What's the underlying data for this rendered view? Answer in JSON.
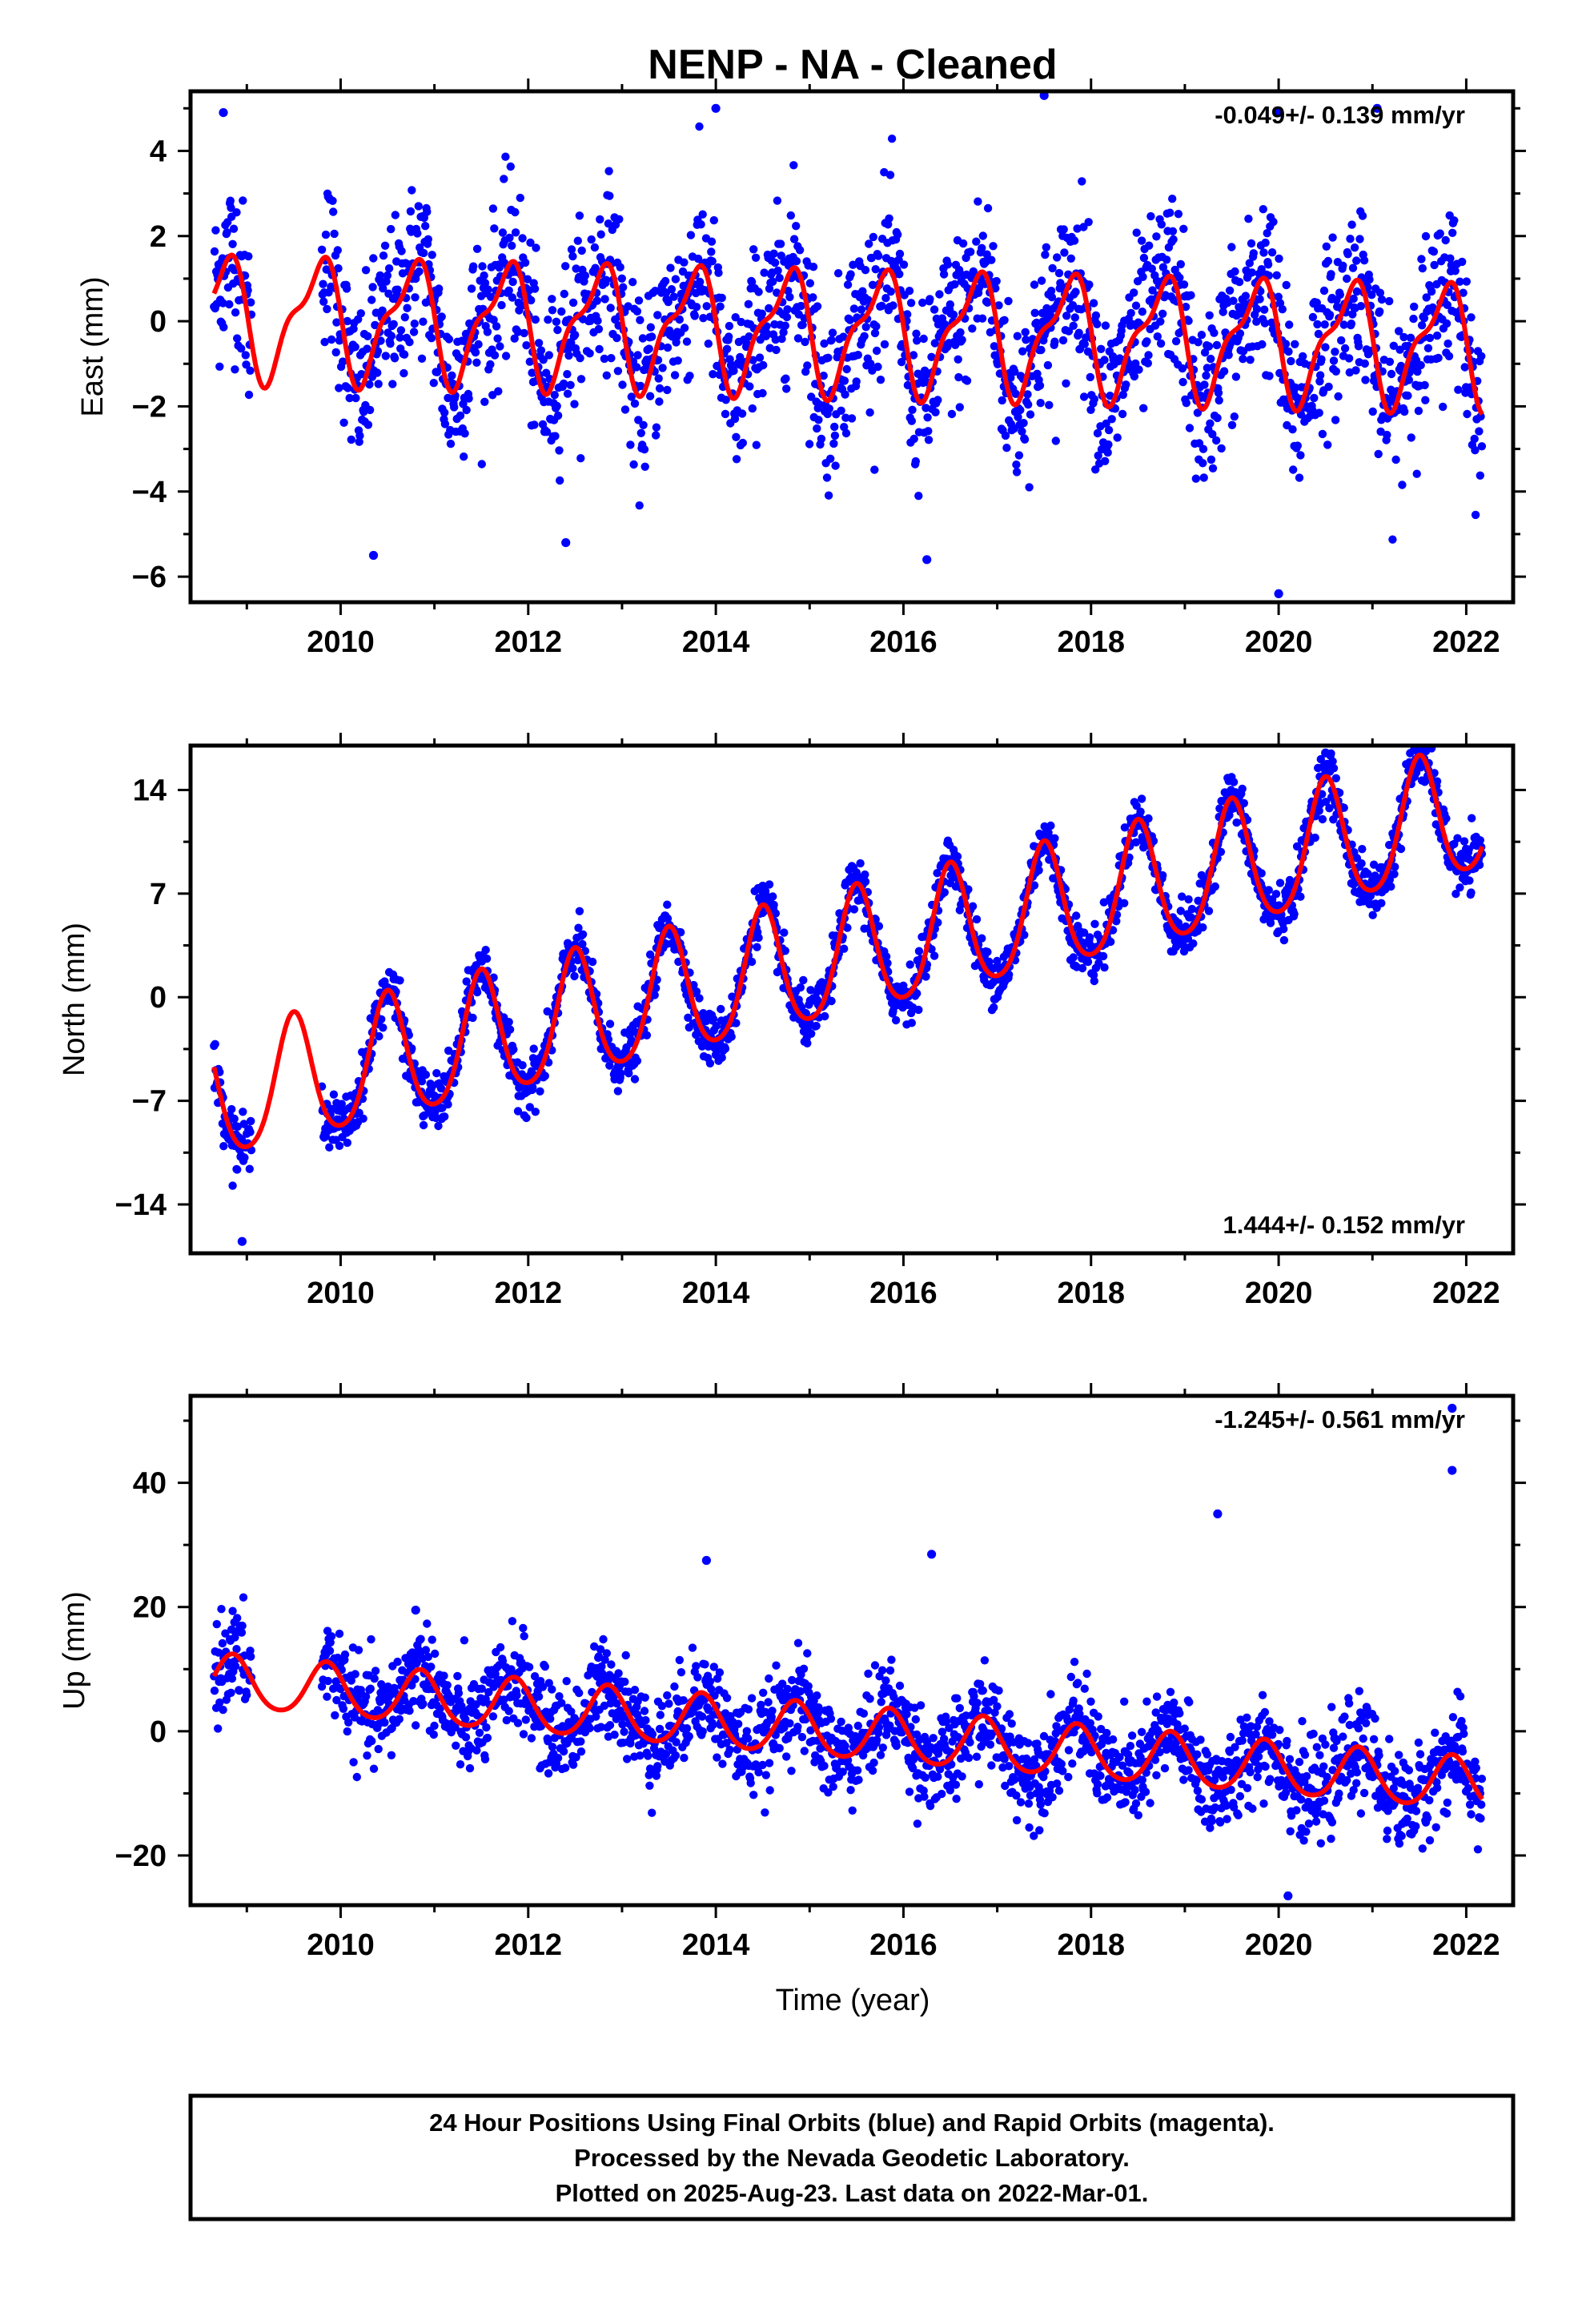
{
  "title": "NENP  - NA - Cleaned",
  "xlabel": "Time (year)",
  "footer": {
    "lines": [
      "24 Hour Positions Using Final Orbits (blue) and Rapid Orbits (magenta).",
      "Processed by the Nevada Geodetic Laboratory.",
      "Plotted on 2025-Aug-23. Last data on 2022-Mar-01."
    ]
  },
  "colors": {
    "points": "#0000ff",
    "model": "#ff0000",
    "frame": "#000000"
  },
  "chart_data": [
    {
      "type": "scatter",
      "ylabel": "East (mm)",
      "rate_label": "-0.049+/- 0.139 mm/yr",
      "xlim": [
        2008.4,
        2022.5
      ],
      "ylim": [
        -6.6,
        5.4
      ],
      "xticks": [
        2010,
        2012,
        2014,
        2016,
        2018,
        2020,
        2022
      ],
      "yticks": [
        -6,
        -4,
        -2,
        0,
        2,
        4
      ],
      "data_range": [
        2008.65,
        2022.17
      ],
      "gap": [
        2009.05,
        2009.8
      ],
      "model": {
        "offset": 0.1,
        "trend": -0.049,
        "annual_amp": 1.3,
        "annual_peak": 2008.75,
        "semiannual_amp": 0.5,
        "semiannual_peak": 2008.9
      },
      "scatter_sd": 1.0,
      "outliers": [
        [
          2008.75,
          4.9
        ],
        [
          2014.0,
          5.0
        ],
        [
          2017.5,
          5.3
        ],
        [
          2020.0,
          4.9
        ],
        [
          2021.05,
          5.0
        ],
        [
          2020.0,
          -6.4
        ],
        [
          2010.35,
          -5.5
        ],
        [
          2012.4,
          -5.2
        ],
        [
          2016.25,
          -5.6
        ]
      ]
    },
    {
      "type": "scatter",
      "ylabel": "North (mm)",
      "rate_label": "1.444+/- 0.152 mm/yr",
      "xlim": [
        2008.4,
        2022.5
      ],
      "ylim": [
        -17.3,
        17.0
      ],
      "xticks": [
        2010,
        2012,
        2014,
        2016,
        2018,
        2020,
        2022
      ],
      "yticks": [
        -14,
        -7,
        0,
        7,
        14
      ],
      "data_range": [
        2008.65,
        2022.17
      ],
      "gap": [
        2009.05,
        2009.8
      ],
      "model": {
        "offset": -7.0,
        "trend": 1.444,
        "annual_amp": 4.2,
        "annual_peak": 2009.5,
        "semiannual_amp": 0.6,
        "semiannual_peak": 2009.5
      },
      "scatter_sd": 0.9,
      "outliers": [
        [
          2008.95,
          -16.5
        ],
        [
          2014.5,
          7.5
        ],
        [
          2020.5,
          16.5
        ]
      ]
    },
    {
      "type": "scatter",
      "ylabel": "Up (mm)",
      "rate_label": "-1.245+/- 0.561 mm/yr",
      "xlim": [
        2008.4,
        2022.5
      ],
      "ylim": [
        -28.0,
        54.0
      ],
      "xticks": [
        2010,
        2012,
        2014,
        2016,
        2018,
        2020,
        2022
      ],
      "yticks": [
        -20,
        0,
        20,
        40
      ],
      "data_range": [
        2008.65,
        2022.17
      ],
      "gap": [
        2009.05,
        2009.8
      ],
      "model": {
        "offset": 8.0,
        "trend": -1.245,
        "annual_amp": 4.2,
        "annual_peak": 2008.85,
        "semiannual_amp": 0.5,
        "semiannual_peak": 2008.85
      },
      "scatter_sd": 3.8,
      "outliers": [
        [
          2013.9,
          27.5
        ],
        [
          2016.3,
          28.5
        ],
        [
          2019.35,
          35.0
        ],
        [
          2021.85,
          52.0
        ],
        [
          2021.85,
          42.0
        ],
        [
          2010.8,
          19.5
        ],
        [
          2020.1,
          -26.5
        ]
      ]
    }
  ]
}
